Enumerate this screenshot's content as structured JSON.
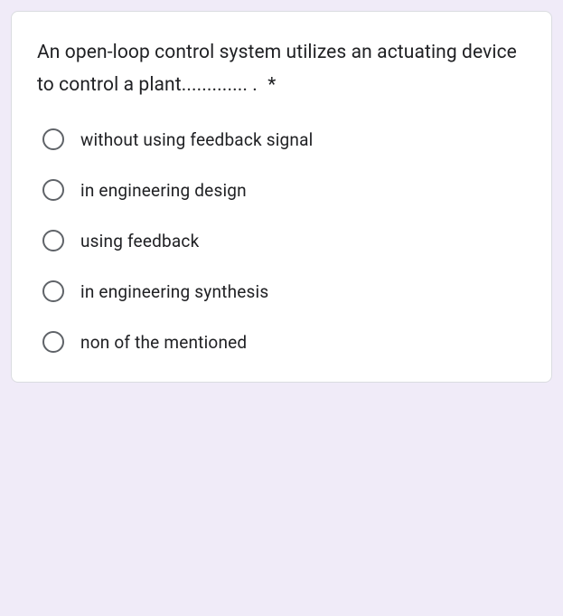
{
  "question": {
    "text": "An open-loop control system utilizes an actuating device to control a plant............. .",
    "required_marker": "*",
    "text_color": "#202124",
    "font_size": 21
  },
  "options": [
    {
      "label": "without using feedback signal",
      "selected": false
    },
    {
      "label": "in engineering design",
      "selected": false
    },
    {
      "label": "using feedback",
      "selected": false
    },
    {
      "label": "in engineering synthesis",
      "selected": false
    },
    {
      "label": "non of the mentioned",
      "selected": false
    }
  ],
  "styling": {
    "background_color": "#f0ebf8",
    "card_background": "#ffffff",
    "card_border_color": "#dadce0",
    "card_border_radius": 8,
    "radio_border_color": "#5f6368",
    "option_font_size": 19,
    "option_text_color": "#202124"
  }
}
